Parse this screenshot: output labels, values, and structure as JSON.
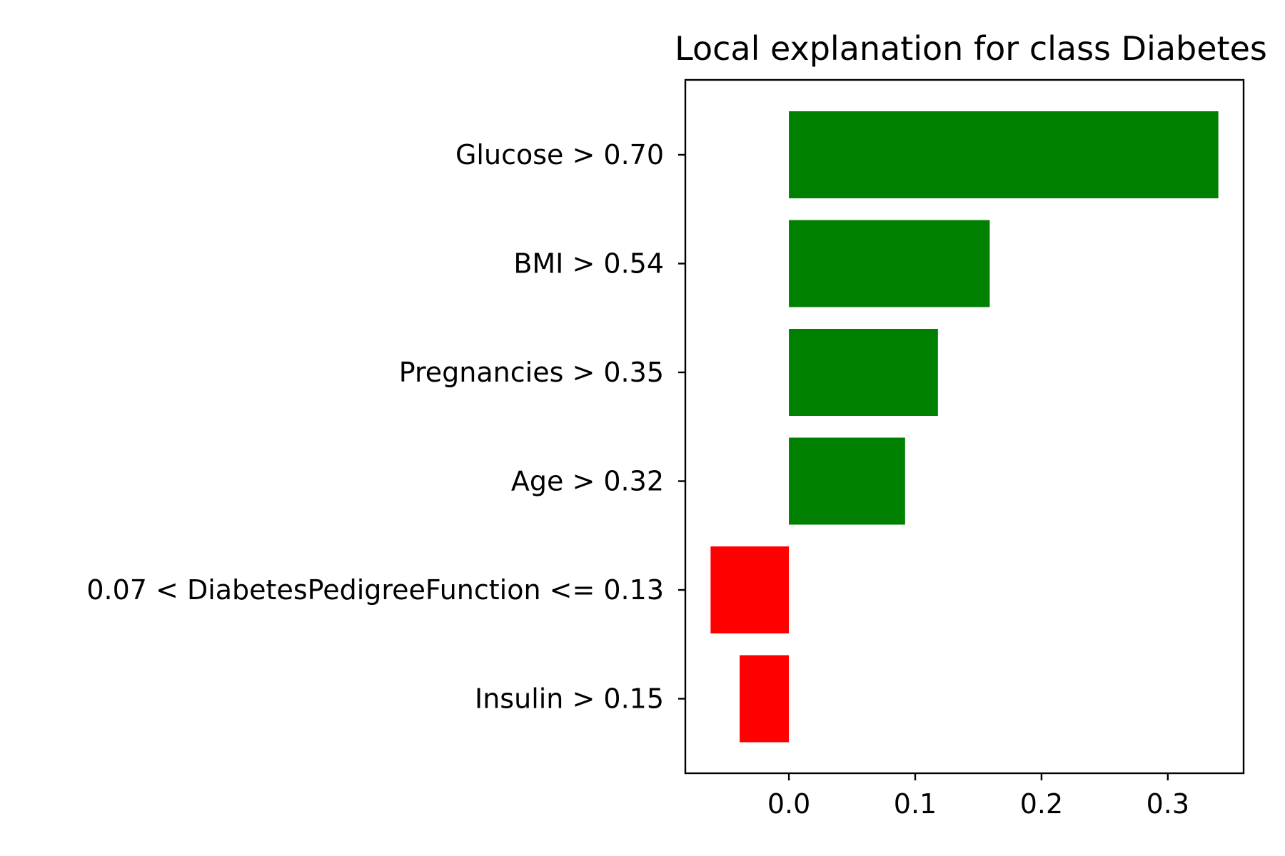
{
  "chart_data": {
    "type": "bar",
    "orientation": "horizontal",
    "title": "Local explanation for class Diabetes",
    "xlabel": "",
    "ylabel": "",
    "categories": [
      "Glucose > 0.70",
      "BMI > 0.54",
      "Pregnancies > 0.35",
      "Age > 0.32",
      "0.07 < DiabetesPedigreeFunction <= 0.13",
      "Insulin > 0.15"
    ],
    "values": [
      0.34,
      0.159,
      0.118,
      0.092,
      -0.062,
      -0.039
    ],
    "xlim": [
      -0.082,
      0.36
    ],
    "xticks": [
      0.0,
      0.1,
      0.2,
      0.3
    ],
    "xtick_labels": [
      "0.0",
      "0.1",
      "0.2",
      "0.3"
    ],
    "grid": false,
    "colors": {
      "positive": "#008000",
      "negative": "#ff0000",
      "axis": "#000000"
    }
  }
}
